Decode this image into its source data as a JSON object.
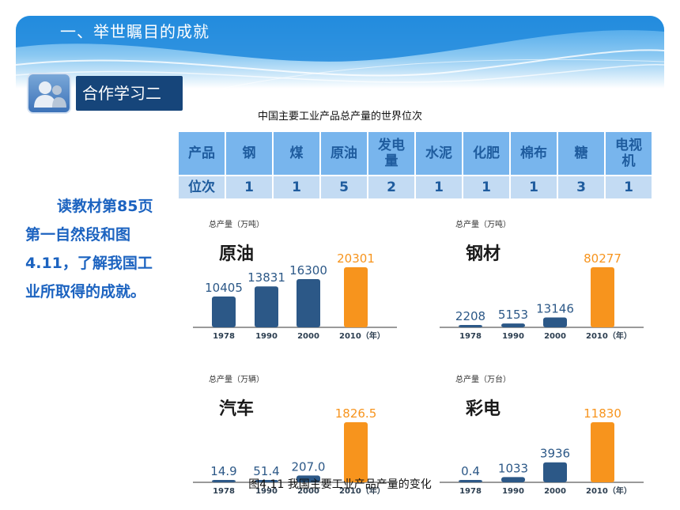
{
  "header": {
    "section_title": "一、举世瞩目的成就"
  },
  "coop": {
    "label": "合作学习二",
    "icon": "people-icon"
  },
  "rank_table": {
    "title": "中国主要工业产品总产量的世界位次",
    "row_labels": [
      "产品",
      "位次"
    ],
    "products": [
      "钢",
      "煤",
      "原油",
      "发电\n量",
      "水泥",
      "化肥",
      "棉布",
      "糖",
      "电视\n机"
    ],
    "ranks": [
      "1",
      "1",
      "5",
      "2",
      "1",
      "1",
      "1",
      "3",
      "1"
    ]
  },
  "side_text": [
    "读教材第85页",
    "第一自然段和图",
    "4.11，了解我国工",
    "业所取得的成就。"
  ],
  "colors": {
    "bar_blue": "#2c5887",
    "bar_orange": "#f7941d",
    "value_blue": "#2c5887",
    "header_blue": "#1b86d9"
  },
  "chart_data": [
    {
      "type": "bar",
      "title": "原油",
      "ylabel": "总产量（万吨）",
      "categories": [
        "1978",
        "1990",
        "2000",
        "2010（年）"
      ],
      "values": [
        10405,
        13831,
        16300,
        20301
      ],
      "ylim": [
        0,
        20301
      ],
      "value_labels": [
        "10405",
        "13831",
        "16300",
        "20301"
      ]
    },
    {
      "type": "bar",
      "title": "钢材",
      "ylabel": "总产量（万吨）",
      "categories": [
        "1978",
        "1990",
        "2000",
        "2010（年）"
      ],
      "values": [
        2208,
        5153,
        13146,
        80277
      ],
      "ylim": [
        0,
        80277
      ],
      "value_labels": [
        "2208",
        "5153",
        "13146",
        "80277"
      ]
    },
    {
      "type": "bar",
      "title": "汽车",
      "ylabel": "总产量（万辆）",
      "categories": [
        "1978",
        "1990",
        "2000",
        "2010（年）"
      ],
      "values": [
        14.9,
        51.4,
        207.0,
        1826.5
      ],
      "ylim": [
        0,
        1826.5
      ],
      "value_labels": [
        "14.9",
        "51.4",
        "207.0",
        "1826.5"
      ]
    },
    {
      "type": "bar",
      "title": "彩电",
      "ylabel": "总产量（万台）",
      "categories": [
        "1978",
        "1990",
        "2000",
        "2010（年）"
      ],
      "values": [
        0.4,
        1033,
        3936,
        11830
      ],
      "ylim": [
        0,
        11830
      ],
      "value_labels": [
        "0.4",
        "1033",
        "3936",
        "11830"
      ]
    }
  ],
  "caption": "图4.11  我国主要工业产品产量的变化"
}
